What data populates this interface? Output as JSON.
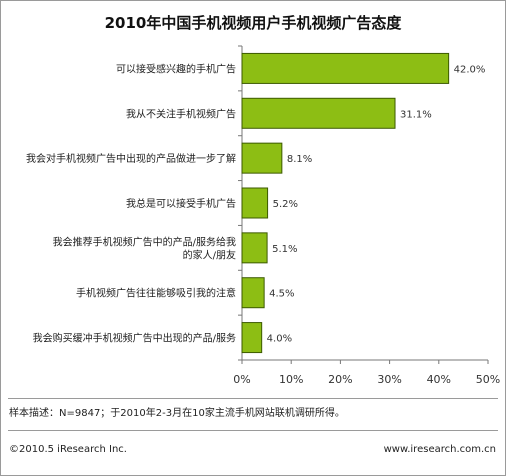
{
  "chart_data": {
    "type": "bar",
    "orientation": "horizontal",
    "title": "2010年中国手机视频用户手机视频广告态度",
    "categories": [
      "可以接受感兴趣的手机广告",
      "我从不关注手机视频广告",
      "我会对手机视频广告中出现的产品做进一步了解",
      "我总是可以接受手机广告",
      "我会推荐手机视频广告中的产品/服务给我的家人/朋友",
      "手机视频广告往往能够吸引我的注意",
      "我会购买缓冲手机视频广告中出现的产品/服务"
    ],
    "values": [
      42.0,
      31.1,
      8.1,
      5.2,
      5.1,
      4.5,
      4.0
    ],
    "value_labels": [
      "42.0%",
      "31.1%",
      "8.1%",
      "5.2%",
      "5.1%",
      "4.5%",
      "4.0%"
    ],
    "xlim": [
      0,
      50
    ],
    "ticks": [
      0,
      10,
      20,
      30,
      40,
      50
    ],
    "tick_labels": [
      "0%",
      "10%",
      "20%",
      "30%",
      "40%",
      "50%"
    ],
    "bar_color": "#8dbe14",
    "bar_stroke": "#3c5a00",
    "grid": false
  },
  "note": "样本描述：N=9847；于2010年2-3月在10家主流手机网站联机调研所得。",
  "footer": {
    "copyright": "©2010.5 iResearch Inc.",
    "website": "www.iresearch.com.cn"
  }
}
